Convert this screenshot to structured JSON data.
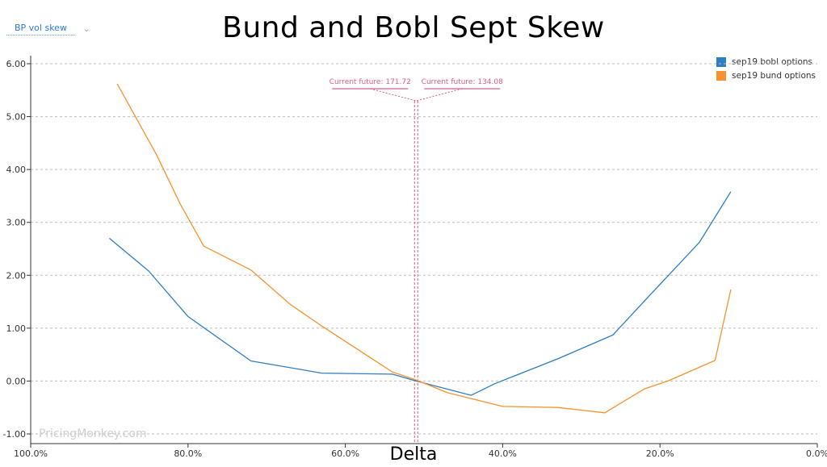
{
  "selector": {
    "label": "BP vol skew",
    "icon": "chevron-down-icon"
  },
  "chart_data": {
    "type": "line",
    "title": "Bund and Bobl Sept Skew",
    "xlabel": "Delta",
    "ylabel": "",
    "xlim": [
      100,
      0
    ],
    "ylim": [
      -1,
      6
    ],
    "x_ticks": [
      "100.0%",
      "80.0%",
      "60.0%",
      "40.0%",
      "20.0%",
      "0.0%"
    ],
    "y_ticks": [
      "-1.00",
      "0.00",
      "1.00",
      "2.00",
      "3.00",
      "4.00",
      "5.00",
      "6.00"
    ],
    "grid": true,
    "legend": "top-right",
    "series": [
      {
        "name": "sep19 bobl options",
        "color": "#2e7ec4",
        "x": [
          90,
          85,
          80,
          72,
          63,
          54,
          51,
          44,
          41,
          33,
          26,
          21,
          15,
          11
        ],
        "y": [
          2.7,
          2.08,
          1.22,
          0.38,
          0.15,
          0.13,
          0.0,
          -0.27,
          -0.05,
          0.42,
          0.87,
          1.67,
          2.62,
          3.58
        ]
      },
      {
        "name": "sep19 bund options",
        "color": "#f7922e",
        "x": [
          89,
          84,
          81,
          78,
          72,
          67,
          63,
          54,
          51,
          47,
          40,
          33,
          27,
          22,
          19,
          13,
          11
        ],
        "y": [
          5.62,
          4.28,
          3.35,
          2.55,
          2.1,
          1.45,
          1.04,
          0.17,
          0.02,
          -0.22,
          -0.48,
          -0.5,
          -0.6,
          -0.15,
          0.0,
          0.39,
          1.73
        ]
      }
    ],
    "annotations": [
      {
        "text": "Current future: 171.72",
        "color": "#e05a8a",
        "x": 51
      },
      {
        "text": "Current future: 134.08",
        "color": "#e05a8a",
        "x": 51
      }
    ]
  },
  "watermark": "PricingMonkey.com"
}
